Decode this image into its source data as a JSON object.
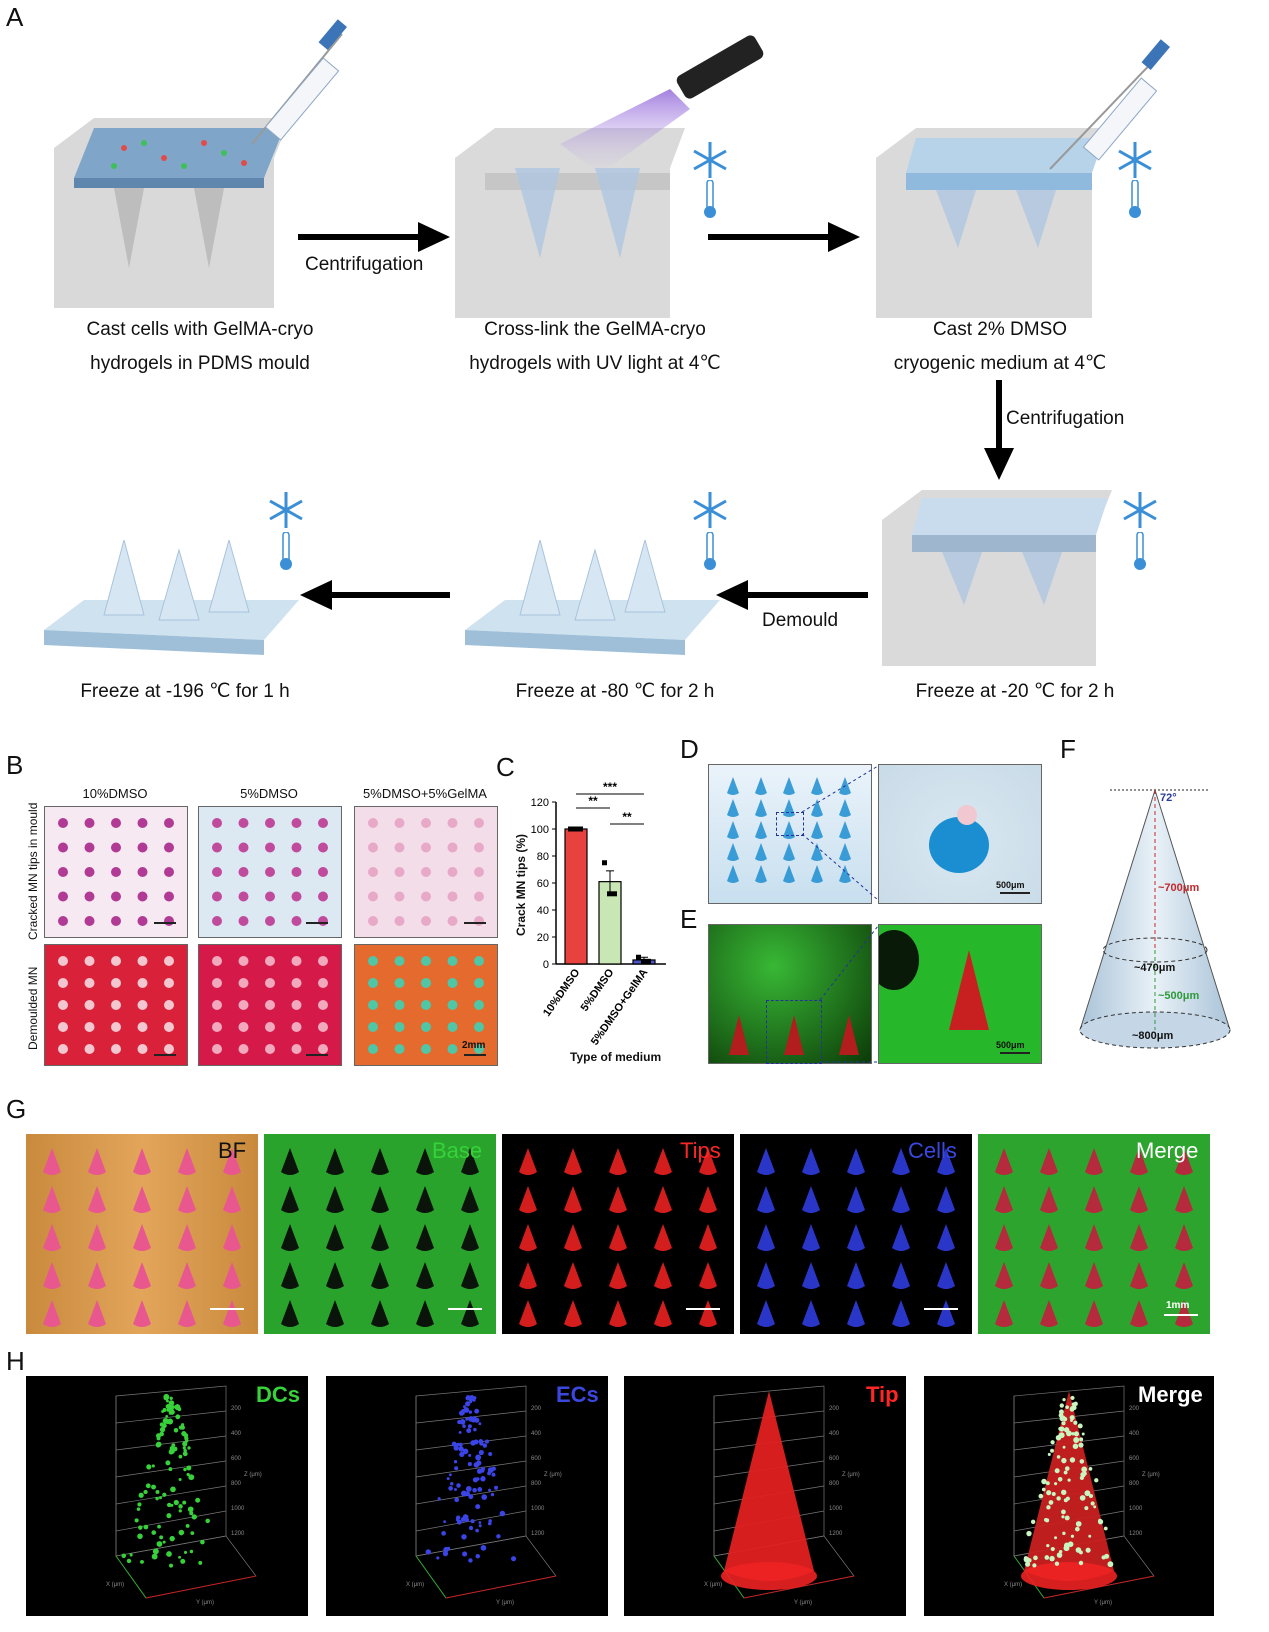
{
  "panel_labels": {
    "A": "A",
    "B": "B",
    "C": "C",
    "D": "D",
    "E": "E",
    "F": "F",
    "G": "G",
    "H": "H"
  },
  "panelA": {
    "step1_line1": "Cast cells with GelMA-cryo",
    "step1_line2": "hydrogels in PDMS mould",
    "step2_line1": "Cross-link the GelMA-cryo",
    "step2_line2": "hydrogels  with UV light at 4℃",
    "step3_line1": "Cast 2% DMSO",
    "step3_line2": "cryogenic medium at 4℃",
    "step4": "Freeze at -20 ℃ for 2 h",
    "step5": "Freeze at -80 ℃ for 2 h",
    "step6": "Freeze at -196 ℃ for 1 h",
    "arrow1": "Centrifugation",
    "arrow2": "Centrifugation",
    "arrow3": "Demould"
  },
  "panelB": {
    "col1": "10%DMSO",
    "col2": "5%DMSO",
    "col3": "5%DMSO+5%GelMA",
    "row1": "Cracked MN tips in mould",
    "row2": "Demoulded MN",
    "scale": "2mm"
  },
  "panelD": {
    "scale": "500μm"
  },
  "panelE": {
    "scale": "500μm"
  },
  "panelF": {
    "angle": "72°",
    "height_red": "~700μm",
    "diam_mid": "~470μm",
    "height_green": "~500μm",
    "diam_base": "~800μm"
  },
  "panelG": {
    "bf": "BF",
    "base": "Base",
    "tips": "Tips",
    "cells": "Cells",
    "merge": "Merge",
    "scale": "1mm"
  },
  "panelH": {
    "dcs": "DCs",
    "ecs": "ECs",
    "tip": "Tip",
    "merge": "Merge",
    "z_axis": "Z (μm)",
    "x_axis": "X (μm)",
    "y_axis": "Y (μm)",
    "z_ticks": [
      "200",
      "400",
      "600",
      "800",
      "1000",
      "1200"
    ],
    "xy_ticks": [
      "200",
      "400",
      "600",
      "800"
    ]
  },
  "colors": {
    "red": "#e8423f",
    "green_bar": "#c9e7b5",
    "blue_bar": "#4a55c8"
  },
  "chart_data": {
    "type": "bar",
    "title": "",
    "ylabel": "Crack MN tips (%)",
    "xlabel": "Type of medium",
    "categories": [
      "10%DMSO",
      "5%DMSO",
      "5%DMSO+GelMA"
    ],
    "values": [
      100,
      61,
      3
    ],
    "errors": [
      0,
      8,
      2
    ],
    "ylim": [
      0,
      120
    ],
    "yticks": [
      0,
      20,
      40,
      60,
      80,
      100,
      120
    ],
    "points": [
      [
        100,
        100,
        100
      ],
      [
        75,
        52,
        52
      ],
      [
        5,
        2,
        2
      ]
    ],
    "significance": [
      "**",
      "***",
      "**"
    ]
  }
}
